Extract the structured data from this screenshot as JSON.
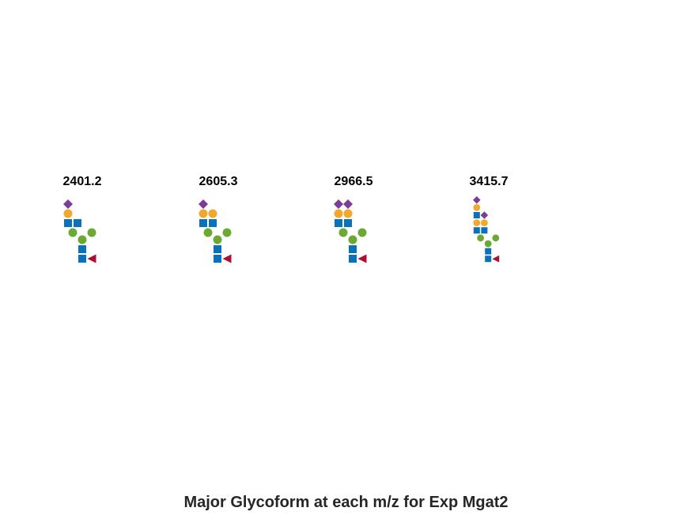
{
  "caption": "Major Glycoform at each m/z for Exp Mgat2",
  "colors": {
    "neu5ac": "#7d3c98",
    "galactose": "#f0a92c",
    "glcnac": "#0a72b8",
    "mannose": "#6aaa32",
    "fucose": "#ab1030"
  },
  "glycoforms": [
    {
      "mz": "2401.2",
      "residues": [
        "neu5ac-diamond",
        "galactose-circle",
        "glcnac-square",
        "glcnac-square",
        "mannose-circle",
        "mannose-circle",
        "mannose-circle",
        "glcnac-square",
        "glcnac-square",
        "fucose-triangle"
      ]
    },
    {
      "mz": "2605.3",
      "residues": [
        "neu5ac-diamond",
        "galactose-circle",
        "galactose-circle",
        "glcnac-square",
        "glcnac-square",
        "mannose-circle",
        "mannose-circle",
        "mannose-circle",
        "glcnac-square",
        "glcnac-square",
        "fucose-triangle"
      ]
    },
    {
      "mz": "2966.5",
      "residues": [
        "neu5ac-diamond",
        "neu5ac-diamond",
        "galactose-circle",
        "galactose-circle",
        "glcnac-square",
        "glcnac-square",
        "mannose-circle",
        "mannose-circle",
        "mannose-circle",
        "glcnac-square",
        "glcnac-square",
        "fucose-triangle"
      ]
    },
    {
      "mz": "3415.7",
      "residues": [
        "neu5ac-diamond",
        "galactose-circle",
        "glcnac-square",
        "neu5ac-diamond",
        "galactose-circle",
        "galactose-circle",
        "glcnac-square",
        "glcnac-square",
        "mannose-circle",
        "mannose-circle",
        "mannose-circle",
        "glcnac-square",
        "glcnac-square",
        "fucose-triangle"
      ]
    }
  ]
}
